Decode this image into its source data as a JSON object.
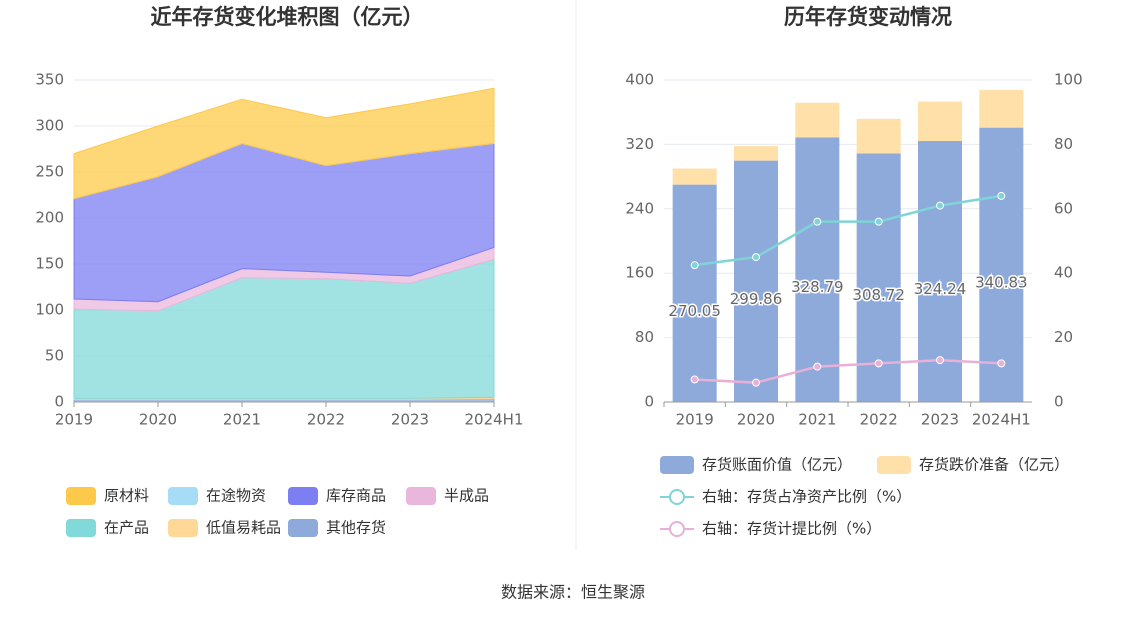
{
  "chart_data": [
    {
      "type": "stacked_area",
      "title": "近年存货变化堆积图（亿元）",
      "categories": [
        "2019",
        "2020",
        "2021",
        "2022",
        "2023",
        "2024H1"
      ],
      "ylim": [
        0,
        350
      ],
      "yticks": [
        0,
        50,
        100,
        150,
        200,
        250,
        300,
        350
      ],
      "grid": true,
      "series": [
        {
          "name": "原材料",
          "color": "#fdc94a",
          "values": [
            49,
            55,
            48,
            52,
            54,
            60
          ]
        },
        {
          "name": "在途物资",
          "color": "#a6dcf6",
          "values": [
            0,
            0,
            0,
            0,
            0,
            0
          ]
        },
        {
          "name": "库存商品",
          "color": "#7c7ef2",
          "values": [
            109,
            136,
            136,
            116,
            133,
            113
          ]
        },
        {
          "name": "半成品",
          "color": "#e9b7dc",
          "values": [
            11,
            10,
            10,
            7,
            8,
            13
          ]
        },
        {
          "name": "在产品",
          "color": "#82d9d9",
          "values": [
            97,
            95,
            131,
            130,
            125,
            150
          ]
        },
        {
          "name": "低值易耗品",
          "color": "#ffd898",
          "values": [
            1,
            1,
            1,
            1,
            1,
            1
          ]
        },
        {
          "name": "其他存货",
          "color": "#8eaadb",
          "values": [
            3,
            3,
            3,
            3,
            3,
            4
          ]
        }
      ]
    },
    {
      "type": "bar_line",
      "title": "历年存货变动情况",
      "categories": [
        "2019",
        "2020",
        "2021",
        "2022",
        "2023",
        "2024H1"
      ],
      "ylim": [
        0,
        400
      ],
      "yticks": [
        0,
        80,
        160,
        240,
        320,
        400
      ],
      "y2lim": [
        0,
        100
      ],
      "y2ticks": [
        0,
        20,
        40,
        60,
        80,
        100
      ],
      "grid": true,
      "series": [
        {
          "name": "存货账面价值（亿元）",
          "color": "#8eaadb",
          "kind": "bar",
          "values": [
            270.05,
            299.86,
            328.79,
            308.72,
            324.24,
            340.83
          ]
        },
        {
          "name": "存货跌价准备（亿元）",
          "color": "#ffe0a8",
          "kind": "bar",
          "values": [
            20,
            18,
            43,
            43,
            49,
            47
          ]
        },
        {
          "name": "右轴：存货占净资产比例（%）",
          "color": "#7fd4d8",
          "kind": "line",
          "axis": "y2",
          "values": [
            42.5,
            45,
            56,
            56,
            61,
            64
          ]
        },
        {
          "name": "右轴：存货计提比例（%）",
          "color": "#e8b0d8",
          "kind": "line",
          "axis": "y2",
          "values": [
            7,
            6,
            11,
            12,
            13,
            12
          ]
        }
      ]
    }
  ],
  "source": "数据来源：恒生聚源"
}
